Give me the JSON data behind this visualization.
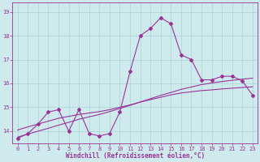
{
  "xlabel": "Windchill (Refroidissement éolien,°C)",
  "bg_color": "#ceeaed",
  "line_color": "#993399",
  "grid_color": "#aad4d8",
  "spine_color": "#993399",
  "x_ticks": [
    0,
    1,
    2,
    3,
    4,
    5,
    6,
    7,
    8,
    9,
    10,
    11,
    12,
    13,
    14,
    15,
    16,
    17,
    18,
    19,
    20,
    21,
    22,
    23
  ],
  "y_ticks": [
    14,
    15,
    16,
    17,
    18,
    19
  ],
  "ylim": [
    13.5,
    19.4
  ],
  "xlim": [
    -0.5,
    23.5
  ],
  "line1_y": [
    13.7,
    13.9,
    14.3,
    14.8,
    14.9,
    14.0,
    14.9,
    13.9,
    13.8,
    13.9,
    14.8,
    16.5,
    18.0,
    18.3,
    18.75,
    18.5,
    17.2,
    17.0,
    16.15,
    16.15,
    16.3,
    16.3,
    16.1,
    15.5
  ],
  "line2_y": [
    13.75,
    13.88,
    14.0,
    14.12,
    14.25,
    14.37,
    14.5,
    14.6,
    14.7,
    14.82,
    14.95,
    15.08,
    15.22,
    15.36,
    15.5,
    15.62,
    15.75,
    15.85,
    15.95,
    16.02,
    16.08,
    16.13,
    16.18,
    16.22
  ],
  "line3_y": [
    14.05,
    14.18,
    14.3,
    14.42,
    14.54,
    14.62,
    14.7,
    14.76,
    14.82,
    14.9,
    15.0,
    15.1,
    15.22,
    15.32,
    15.42,
    15.52,
    15.6,
    15.65,
    15.7,
    15.73,
    15.77,
    15.8,
    15.83,
    15.86
  ]
}
